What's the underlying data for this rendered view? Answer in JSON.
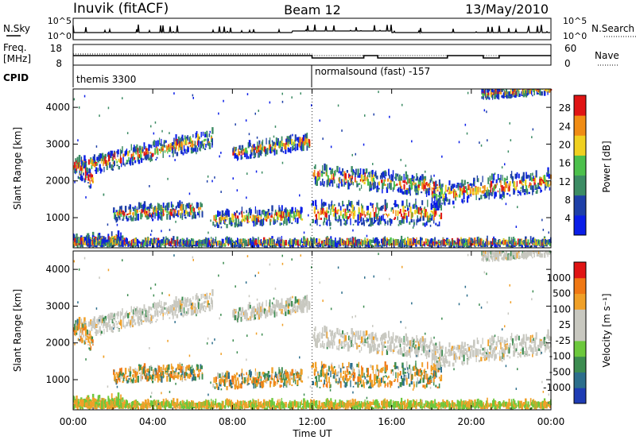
{
  "header": {
    "station": "Inuvik (fitACF)",
    "beam": "Beam 12",
    "date": "13/May/2010"
  },
  "chart_data": {
    "type": "heatmap",
    "x_axis": {
      "label": "Time UT",
      "range": [
        "00:00",
        "24:00"
      ],
      "ticks": [
        "00:00",
        "04:00",
        "08:00",
        "12:00",
        "16:00",
        "20:00",
        "00:00"
      ],
      "tick_hours": [
        0,
        4,
        8,
        12,
        16,
        20,
        24
      ]
    },
    "nsky_panel": {
      "label_left": "N.Sky",
      "label_right": "N.Search",
      "left_ticks": [
        "10^5",
        "10^0"
      ],
      "right_ticks": [
        "10^5",
        "10^0"
      ]
    },
    "freq_panel": {
      "label_left_1": "Freq.",
      "label_left_2": "[MHz]",
      "label_right": "Nave",
      "left_ticks": [
        18,
        8
      ],
      "right_ticks": [
        60,
        0
      ],
      "freq_mhz_approx": 11.5
    },
    "cpid_panel": {
      "label": "CPID",
      "segments": [
        {
          "start_hour": 0,
          "end_hour": 12,
          "name": "themis 3300"
        },
        {
          "start_hour": 12,
          "end_hour": 24,
          "name": "normalsound (fast) -157"
        }
      ]
    },
    "power_panel": {
      "ylabel": "Slant Range [km]",
      "yticks": [
        1000,
        2000,
        3000,
        4000
      ],
      "ylim": [
        180,
        4500
      ],
      "colorbar_label": "Power [dB]",
      "colorbar_ticks": [
        "4",
        "8",
        "12",
        "16",
        "20",
        "24",
        "28"
      ],
      "colorbar_colors": [
        "#0a1ee8",
        "#1e40a8",
        "#3c8c64",
        "#4cc04c",
        "#f0d020",
        "#f08c14",
        "#e01414"
      ]
    },
    "velocity_panel": {
      "ylabel": "Slant Range [km]",
      "yticks": [
        1000,
        2000,
        3000,
        4000
      ],
      "ylim": [
        180,
        4500
      ],
      "colorbar_label": "Velocity [m s⁻¹]",
      "colorbar_ticks": [
        "1000",
        "500",
        "100",
        "25",
        "-25",
        "-100",
        "-500",
        "-1000"
      ],
      "colorbar_colors": [
        "#1e3cb4",
        "#2c6e8c",
        "#3c8c50",
        "#6cc83c",
        "#c8c8c0",
        "#c8c8c0",
        "#f0a028",
        "#f07814",
        "#e01414"
      ]
    },
    "scatter_features": [
      {
        "name": "band-upper",
        "start_hour": 0.3,
        "end_hour": 7.0,
        "range_start_km": 2300,
        "range_end_km": 3100,
        "thickness_km": 450
      },
      {
        "name": "band-upper-b",
        "start_hour": 8.0,
        "end_hour": 11.9,
        "range_start_km": 2700,
        "range_end_km": 3000,
        "thickness_km": 350
      },
      {
        "name": "band-early",
        "start_hour": 0.0,
        "end_hour": 1.0,
        "range_start_km": 2400,
        "range_end_km": 1900,
        "thickness_km": 500
      },
      {
        "name": "band-lower",
        "start_hour": 2.0,
        "end_hour": 6.5,
        "range_start_km": 1050,
        "range_end_km": 1150,
        "thickness_km": 380
      },
      {
        "name": "band-lower-b",
        "start_hour": 7.0,
        "end_hour": 11.5,
        "range_start_km": 900,
        "range_end_km": 1000,
        "thickness_km": 400
      },
      {
        "name": "band-pm-upper",
        "start_hour": 12.0,
        "end_hour": 18.5,
        "range_start_km": 2100,
        "range_end_km": 1750,
        "thickness_km": 500
      },
      {
        "name": "band-pm-lower",
        "start_hour": 12.0,
        "end_hour": 18.5,
        "range_start_km": 1050,
        "range_end_km": 1050,
        "thickness_km": 600
      },
      {
        "name": "band-late",
        "start_hour": 18.0,
        "end_hour": 24.0,
        "range_start_km": 1550,
        "range_end_km": 1950,
        "thickness_km": 550
      },
      {
        "name": "band-late-top",
        "start_hour": 20.5,
        "end_hour": 24.0,
        "range_start_km": 4300,
        "range_end_km": 4450,
        "thickness_km": 250
      },
      {
        "name": "near-range-am",
        "start_hour": 0.0,
        "end_hour": 2.5,
        "range_start_km": 300,
        "range_end_km": 350,
        "thickness_km": 220
      },
      {
        "name": "near-range-all",
        "start_hour": 0.0,
        "end_hour": 24.0,
        "range_start_km": 250,
        "range_end_km": 250,
        "thickness_km": 130
      }
    ]
  }
}
